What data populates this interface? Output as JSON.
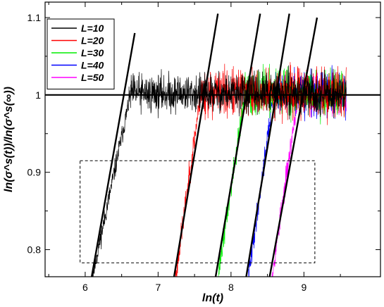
{
  "chart_data": {
    "type": "line",
    "xlabel": "ln(t)",
    "ylabel": "ln(σ^s(t))/ln(σ^s(∞))",
    "xlim": [
      5.45,
      10.05
    ],
    "ylim": [
      0.765,
      1.12
    ],
    "xticks": [
      {
        "value": 6,
        "label": "6"
      },
      {
        "value": 7,
        "label": "7"
      },
      {
        "value": 8,
        "label": "8"
      },
      {
        "value": 9,
        "label": "9"
      }
    ],
    "yticks": [
      {
        "value": 0.8,
        "label": "0.8"
      },
      {
        "value": 0.9,
        "label": "0.9"
      },
      {
        "value": 1.0,
        "label": "1"
      },
      {
        "value": 1.1,
        "label": "1.1"
      }
    ],
    "grid": false,
    "legend_position": "top-left",
    "series": [
      {
        "name": "L=10",
        "color": "#000000",
        "rise_start": [
          6.1,
          0.765
        ],
        "rise_end": [
          6.62,
          1.0
        ],
        "x_end": 9.58,
        "noise": 0.016,
        "seed": 11
      },
      {
        "name": "L=20",
        "color": "#ff0000",
        "rise_start": [
          7.24,
          0.765
        ],
        "rise_end": [
          7.58,
          1.0
        ],
        "x_end": 9.58,
        "noise": 0.02,
        "seed": 23
      },
      {
        "name": "L=30",
        "color": "#00ee00",
        "rise_start": [
          7.82,
          0.765
        ],
        "rise_end": [
          8.19,
          1.0
        ],
        "x_end": 9.58,
        "noise": 0.019,
        "seed": 37
      },
      {
        "name": "L=40",
        "color": "#0000ff",
        "rise_start": [
          8.24,
          0.765
        ],
        "rise_end": [
          8.58,
          1.0
        ],
        "x_end": 9.58,
        "noise": 0.018,
        "seed": 41
      },
      {
        "name": "L=50",
        "color": "#ff00ff",
        "rise_start": [
          8.56,
          0.765
        ],
        "rise_end": [
          8.92,
          1.0
        ],
        "x_end": 9.58,
        "noise": 0.017,
        "seed": 53
      }
    ],
    "fit_lines": [
      {
        "x": [
          6.08,
          6.68
        ],
        "y": [
          0.76,
          1.08
        ]
      },
      {
        "x": [
          7.21,
          7.82
        ],
        "y": [
          0.76,
          1.105
        ]
      },
      {
        "x": [
          7.78,
          8.4
        ],
        "y": [
          0.76,
          1.105
        ]
      },
      {
        "x": [
          8.2,
          8.8
        ],
        "y": [
          0.76,
          1.105
        ]
      },
      {
        "x": [
          8.52,
          9.18
        ],
        "y": [
          0.76,
          1.1
        ]
      }
    ],
    "reference_line": {
      "y": 1.0,
      "x": [
        5.45,
        10.05
      ]
    },
    "inset_box": {
      "x": [
        5.93,
        9.15
      ],
      "y": [
        0.783,
        0.915
      ]
    }
  }
}
